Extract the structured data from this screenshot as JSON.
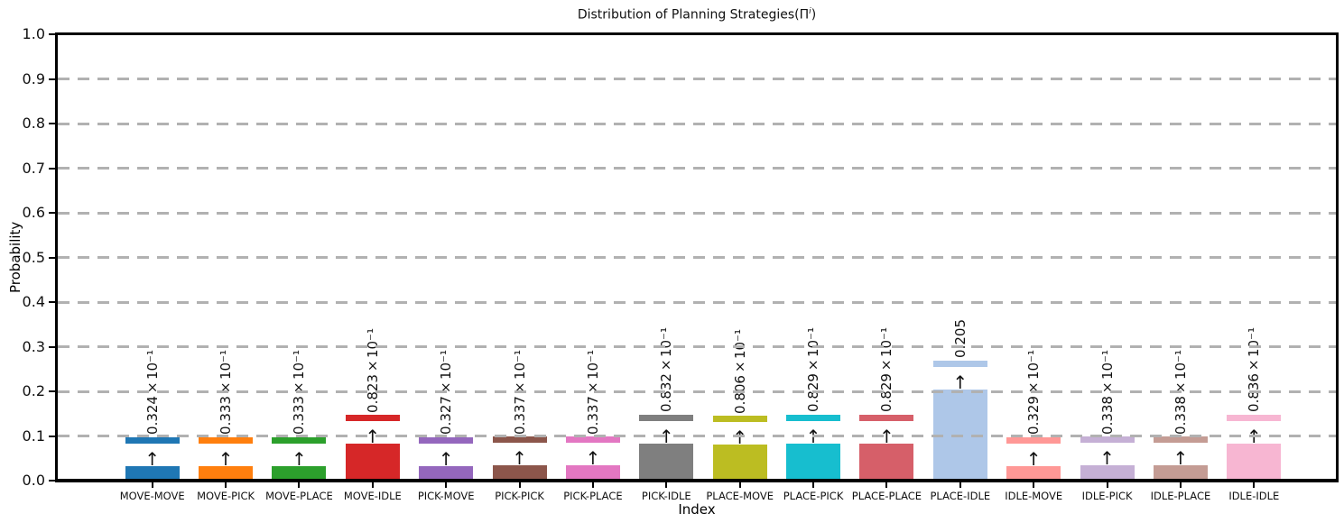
{
  "figure": {
    "title_pre": "Distribution of Planning Strategies(Π",
    "title_sup": "i",
    "title_post": ")",
    "xlabel": "Index",
    "ylabel": "Probability"
  },
  "axes": {
    "ytick_labels": [
      "0.0",
      "0.1",
      "0.2",
      "0.3",
      "0.4",
      "0.5",
      "0.6",
      "0.7",
      "0.8",
      "0.9",
      "1.0"
    ],
    "ytick_values": [
      0.0,
      0.1,
      0.2,
      0.3,
      0.4,
      0.5,
      0.6,
      0.7,
      0.8,
      0.9,
      1.0
    ],
    "grid_values": [
      0.1,
      0.2,
      0.3,
      0.4,
      0.5,
      0.6,
      0.7,
      0.8,
      0.9
    ],
    "grid_color": "#b1b1b1",
    "spine_color": "#000000"
  },
  "chart_data": {
    "type": "bar",
    "title": "Distribution of Planning Strategies(Π^i)",
    "xlabel": "Index",
    "ylabel": "Probability",
    "ylim": [
      0.0,
      1.0
    ],
    "ytick_step": 0.1,
    "grid": "horizontal dashed, gray",
    "legend": "none",
    "categories": [
      "MOVE-MOVE",
      "MOVE-PICK",
      "MOVE-PLACE",
      "MOVE-IDLE",
      "PICK-MOVE",
      "PICK-PICK",
      "PICK-PLACE",
      "PICK-IDLE",
      "PLACE-MOVE",
      "PLACE-PICK",
      "PLACE-PLACE",
      "PLACE-IDLE",
      "IDLE-MOVE",
      "IDLE-PICK",
      "IDLE-PLACE",
      "IDLE-IDLE"
    ],
    "values": [
      0.0324,
      0.0333,
      0.0333,
      0.0823,
      0.0327,
      0.0337,
      0.0337,
      0.0832,
      0.0806,
      0.0829,
      0.0829,
      0.205,
      0.0329,
      0.0338,
      0.0338,
      0.0836
    ],
    "bar_value_labels": [
      "0.324×10⁻¹",
      "0.333×10⁻¹",
      "0.333×10⁻¹",
      "0.823×10⁻¹",
      "0.327×10⁻¹",
      "0.337×10⁻¹",
      "0.337×10⁻¹",
      "0.832×10⁻¹",
      "0.806×10⁻¹",
      "0.829×10⁻¹",
      "0.829×10⁻¹",
      "0.205",
      "0.329×10⁻¹",
      "0.338×10⁻¹",
      "0.338×10⁻¹",
      "0.836×10⁻¹"
    ],
    "bar_colors": [
      "#1f77b4",
      "#ff7f0e",
      "#2ca02c",
      "#d62728",
      "#9467bd",
      "#8c564b",
      "#e377c2",
      "#7f7f7f",
      "#bcbd22",
      "#17becf",
      "#d65f69",
      "#aec7e8",
      "#ff9896",
      "#c5b0d5",
      "#c49c94",
      "#f7b6d2"
    ],
    "marker_offset": 0.0576,
    "annotation_arrow_glyph": "↑"
  }
}
